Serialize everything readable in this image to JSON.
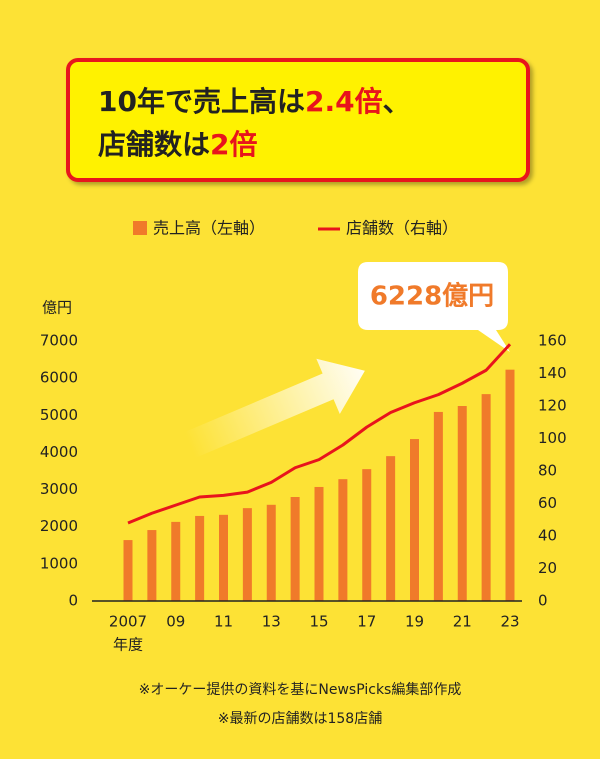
{
  "chart_data": {
    "type": "bar",
    "title": [
      "10年で売上高は",
      "2.4倍",
      "、",
      "店舗数は",
      "2倍"
    ],
    "ylabel": "億円",
    "xlabel": "年度",
    "categories": [
      "2007",
      null,
      "09",
      null,
      "11",
      null,
      "13",
      null,
      "15",
      null,
      "17",
      null,
      "19",
      null,
      "21",
      null,
      "23"
    ],
    "series": [
      {
        "name": "売上高（左軸）",
        "color": "#f07a2a",
        "values": [
          1640,
          1910,
          2130,
          2290,
          2320,
          2500,
          2590,
          2800,
          3070,
          3280,
          3550,
          3900,
          4360,
          5090,
          5250,
          5570,
          6228
        ],
        "value_labels": [
          null,
          null,
          null,
          null,
          null,
          null,
          null,
          null,
          null,
          null,
          null,
          null,
          null,
          null,
          null,
          null,
          "6228億円"
        ]
      },
      {
        "name": "店舗数（右軸）",
        "type": "line",
        "axis": "y2",
        "color": "#e8141c",
        "values": [
          48,
          54,
          59,
          64,
          65,
          67,
          73,
          82,
          87,
          96,
          107,
          116,
          122,
          127,
          134,
          142,
          158
        ]
      }
    ],
    "ylim": [
      0,
      7000
    ],
    "yticks": [
      0,
      1000,
      2000,
      3000,
      4000,
      5000,
      6000,
      7000
    ],
    "y2lim": [
      0,
      160
    ],
    "y2ticks": [
      0,
      20,
      40,
      60,
      80,
      100,
      120,
      140,
      160
    ],
    "grid": false,
    "notes": [
      "※オーケー提供の資料を基にNewsPicks編集部作成",
      "※最新の店舗数は158店舗"
    ]
  }
}
